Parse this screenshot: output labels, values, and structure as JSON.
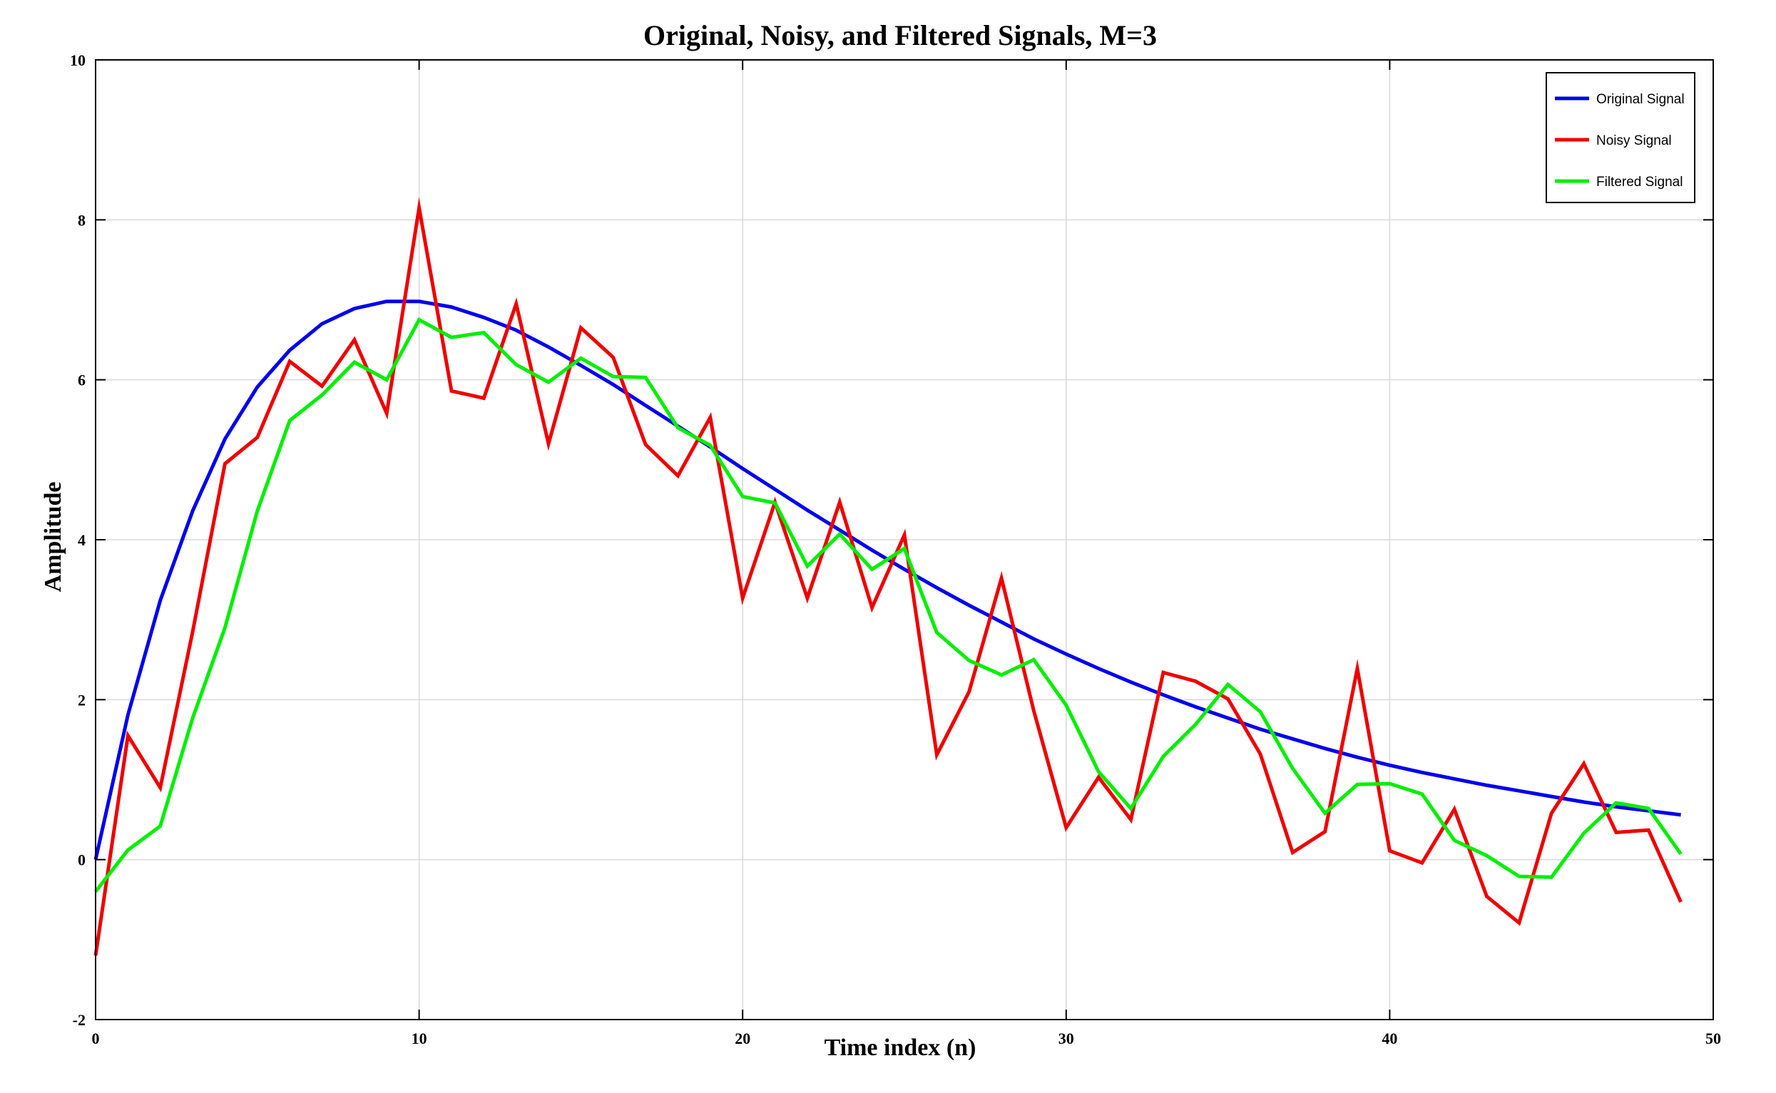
{
  "chart_data": {
    "type": "line",
    "title": "Original, Noisy, and Filtered Signals, M=3",
    "xlabel": "Time index (n)",
    "ylabel": "Amplitude",
    "xlim": [
      0,
      50
    ],
    "ylim": [
      -2,
      10
    ],
    "xticks": [
      0,
      10,
      20,
      30,
      40,
      50
    ],
    "yticks": [
      -2,
      0,
      2,
      4,
      6,
      8,
      10
    ],
    "grid": true,
    "legend_position": "top-right",
    "x": [
      0,
      1,
      2,
      3,
      4,
      5,
      6,
      7,
      8,
      9,
      10,
      11,
      12,
      13,
      14,
      15,
      16,
      17,
      18,
      19,
      20,
      21,
      22,
      23,
      24,
      25,
      26,
      27,
      28,
      29,
      30,
      31,
      32,
      33,
      34,
      35,
      36,
      37,
      38,
      39,
      40,
      41,
      42,
      43,
      44,
      45,
      46,
      47,
      48,
      49
    ],
    "series": [
      {
        "name": "Original Signal",
        "color": "#0000ee",
        "values": [
          0.0,
          1.81,
          3.24,
          4.36,
          5.26,
          5.91,
          6.37,
          6.7,
          6.89,
          6.98,
          6.98,
          6.91,
          6.78,
          6.62,
          6.41,
          6.18,
          5.94,
          5.68,
          5.42,
          5.16,
          4.89,
          4.63,
          4.37,
          4.12,
          3.87,
          3.63,
          3.4,
          3.18,
          2.97,
          2.76,
          2.57,
          2.39,
          2.22,
          2.06,
          1.91,
          1.77,
          1.63,
          1.51,
          1.39,
          1.28,
          1.18,
          1.09,
          1.01,
          0.93,
          0.86,
          0.79,
          0.72,
          0.66,
          0.61,
          0.56
        ]
      },
      {
        "name": "Noisy Signal",
        "color": "#ee0000",
        "values": [
          -1.2,
          1.55,
          0.9,
          2.85,
          4.95,
          5.28,
          6.23,
          5.92,
          6.5,
          5.58,
          8.15,
          5.86,
          5.77,
          6.95,
          5.2,
          6.65,
          6.28,
          5.19,
          4.8,
          5.53,
          3.27,
          4.47,
          3.27,
          4.47,
          3.15,
          4.06,
          1.31,
          2.1,
          3.52,
          1.86,
          0.4,
          1.03,
          0.5,
          2.34,
          2.23,
          2.01,
          1.32,
          0.09,
          0.35,
          2.39,
          0.11,
          -0.04,
          0.63,
          -0.46,
          -0.79,
          0.58,
          1.2,
          0.34,
          0.37,
          -0.53
        ]
      },
      {
        "name": "Filtered Signal",
        "color": "#00ee00",
        "values": [
          -0.4,
          0.12,
          0.42,
          1.77,
          2.9,
          4.36,
          5.49,
          5.81,
          6.22,
          6.0,
          6.75,
          6.53,
          6.59,
          6.19,
          5.97,
          6.27,
          6.04,
          6.03,
          5.4,
          5.18,
          4.54,
          4.46,
          3.67,
          4.07,
          3.63,
          3.89,
          2.84,
          2.49,
          2.31,
          2.5,
          1.93,
          1.1,
          0.64,
          1.29,
          1.69,
          2.19,
          1.85,
          1.14,
          0.58,
          0.94,
          0.95,
          0.82,
          0.24,
          0.05,
          -0.21,
          -0.22,
          0.33,
          0.71,
          0.64,
          0.07
        ]
      }
    ]
  }
}
